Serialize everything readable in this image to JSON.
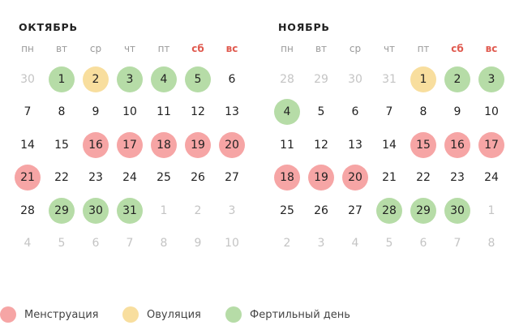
{
  "weekdays": [
    "пн",
    "вт",
    "ср",
    "чт",
    "пт",
    "сб",
    "вс"
  ],
  "colors": {
    "menstruation": "#f6a5a5",
    "ovulation": "#f8de9e",
    "fertile": "#b6dca7",
    "weekend_header": "#e05a4f",
    "other_month_day": "#c4c4c4"
  },
  "months": [
    {
      "title": "ОКТЯБРЬ",
      "weeks": [
        [
          {
            "d": "30",
            "o": true
          },
          {
            "d": "1",
            "s": "fertile"
          },
          {
            "d": "2",
            "s": "ovulation"
          },
          {
            "d": "3",
            "s": "fertile"
          },
          {
            "d": "4",
            "s": "fertile"
          },
          {
            "d": "5",
            "s": "fertile"
          },
          {
            "d": "6"
          }
        ],
        [
          {
            "d": "7"
          },
          {
            "d": "8"
          },
          {
            "d": "9"
          },
          {
            "d": "10"
          },
          {
            "d": "11"
          },
          {
            "d": "12"
          },
          {
            "d": "13"
          }
        ],
        [
          {
            "d": "14"
          },
          {
            "d": "15"
          },
          {
            "d": "16",
            "s": "menstruation"
          },
          {
            "d": "17",
            "s": "menstruation"
          },
          {
            "d": "18",
            "s": "menstruation"
          },
          {
            "d": "19",
            "s": "menstruation"
          },
          {
            "d": "20",
            "s": "menstruation"
          }
        ],
        [
          {
            "d": "21",
            "s": "menstruation"
          },
          {
            "d": "22"
          },
          {
            "d": "23"
          },
          {
            "d": "24"
          },
          {
            "d": "25"
          },
          {
            "d": "26"
          },
          {
            "d": "27"
          }
        ],
        [
          {
            "d": "28"
          },
          {
            "d": "29",
            "s": "fertile"
          },
          {
            "d": "30",
            "s": "fertile"
          },
          {
            "d": "31",
            "s": "fertile"
          },
          {
            "d": "1",
            "o": true
          },
          {
            "d": "2",
            "o": true
          },
          {
            "d": "3",
            "o": true
          }
        ],
        [
          {
            "d": "4",
            "o": true
          },
          {
            "d": "5",
            "o": true
          },
          {
            "d": "6",
            "o": true
          },
          {
            "d": "7",
            "o": true
          },
          {
            "d": "8",
            "o": true
          },
          {
            "d": "9",
            "o": true
          },
          {
            "d": "10",
            "o": true
          }
        ]
      ]
    },
    {
      "title": "НОЯБРЬ",
      "weeks": [
        [
          {
            "d": "28",
            "o": true
          },
          {
            "d": "29",
            "o": true
          },
          {
            "d": "30",
            "o": true
          },
          {
            "d": "31",
            "o": true
          },
          {
            "d": "1",
            "s": "ovulation"
          },
          {
            "d": "2",
            "s": "fertile"
          },
          {
            "d": "3",
            "s": "fertile"
          }
        ],
        [
          {
            "d": "4",
            "s": "fertile"
          },
          {
            "d": "5"
          },
          {
            "d": "6"
          },
          {
            "d": "7"
          },
          {
            "d": "8"
          },
          {
            "d": "9"
          },
          {
            "d": "10"
          }
        ],
        [
          {
            "d": "11"
          },
          {
            "d": "12"
          },
          {
            "d": "13"
          },
          {
            "d": "14"
          },
          {
            "d": "15",
            "s": "menstruation"
          },
          {
            "d": "16",
            "s": "menstruation"
          },
          {
            "d": "17",
            "s": "menstruation"
          }
        ],
        [
          {
            "d": "18",
            "s": "menstruation"
          },
          {
            "d": "19",
            "s": "menstruation"
          },
          {
            "d": "20",
            "s": "menstruation"
          },
          {
            "d": "21"
          },
          {
            "d": "22"
          },
          {
            "d": "23"
          },
          {
            "d": "24"
          }
        ],
        [
          {
            "d": "25"
          },
          {
            "d": "26"
          },
          {
            "d": "27"
          },
          {
            "d": "28",
            "s": "fertile"
          },
          {
            "d": "29",
            "s": "fertile"
          },
          {
            "d": "30",
            "s": "fertile"
          },
          {
            "d": "1",
            "o": true
          }
        ],
        [
          {
            "d": "2",
            "o": true
          },
          {
            "d": "3",
            "o": true
          },
          {
            "d": "4",
            "o": true
          },
          {
            "d": "5",
            "o": true
          },
          {
            "d": "6",
            "o": true
          },
          {
            "d": "7",
            "o": true
          },
          {
            "d": "8",
            "o": true
          }
        ]
      ]
    }
  ],
  "legend": [
    {
      "key": "menstruation",
      "label": "Менструация"
    },
    {
      "key": "ovulation",
      "label": "Овуляция"
    },
    {
      "key": "fertile",
      "label": "Фертильный день"
    }
  ]
}
